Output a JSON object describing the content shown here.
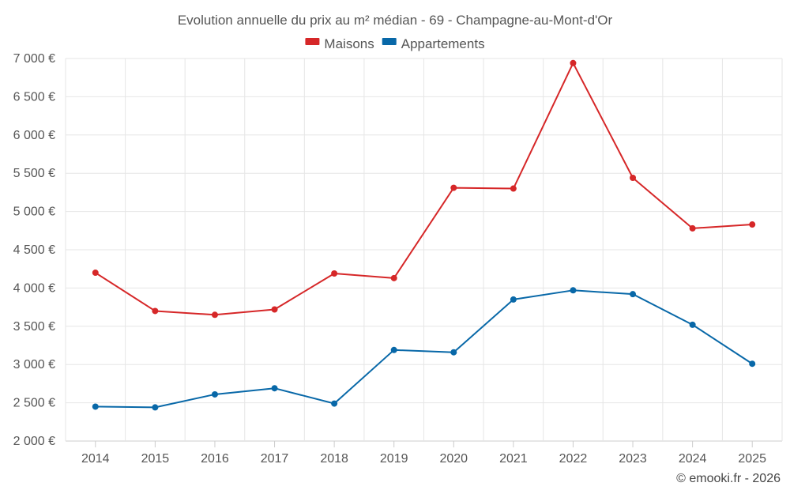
{
  "chart_data": {
    "type": "line",
    "title": "Evolution annuelle du prix au m² médian - 69 - Champagne-au-Mont-d'Or",
    "categories": [
      "2014",
      "2015",
      "2016",
      "2017",
      "2018",
      "2019",
      "2020",
      "2021",
      "2022",
      "2023",
      "2024",
      "2025"
    ],
    "series": [
      {
        "name": "Maisons",
        "color": "#d62728",
        "values": [
          4200,
          3700,
          3650,
          3720,
          4190,
          4130,
          5310,
          5300,
          6940,
          5440,
          4780,
          4830
        ]
      },
      {
        "name": "Appartements",
        "color": "#0868a8",
        "values": [
          2450,
          2440,
          2610,
          2690,
          2490,
          3190,
          3160,
          3850,
          3970,
          3920,
          3520,
          3010
        ]
      }
    ],
    "ylim": [
      2000,
      7000
    ],
    "yticks": [
      2000,
      2500,
      3000,
      3500,
      4000,
      4500,
      5000,
      5500,
      6000,
      6500,
      7000
    ],
    "ytick_labels": [
      "2 000 €",
      "2 500 €",
      "3 000 €",
      "3 500 €",
      "4 000 €",
      "4 500 €",
      "5 000 €",
      "5 500 €",
      "6 000 €",
      "6 500 €",
      "7 000 €"
    ],
    "xlabel": "",
    "ylabel": "",
    "grid": true,
    "legend": "top-center"
  },
  "credit": "© emooki.fr - 2026"
}
